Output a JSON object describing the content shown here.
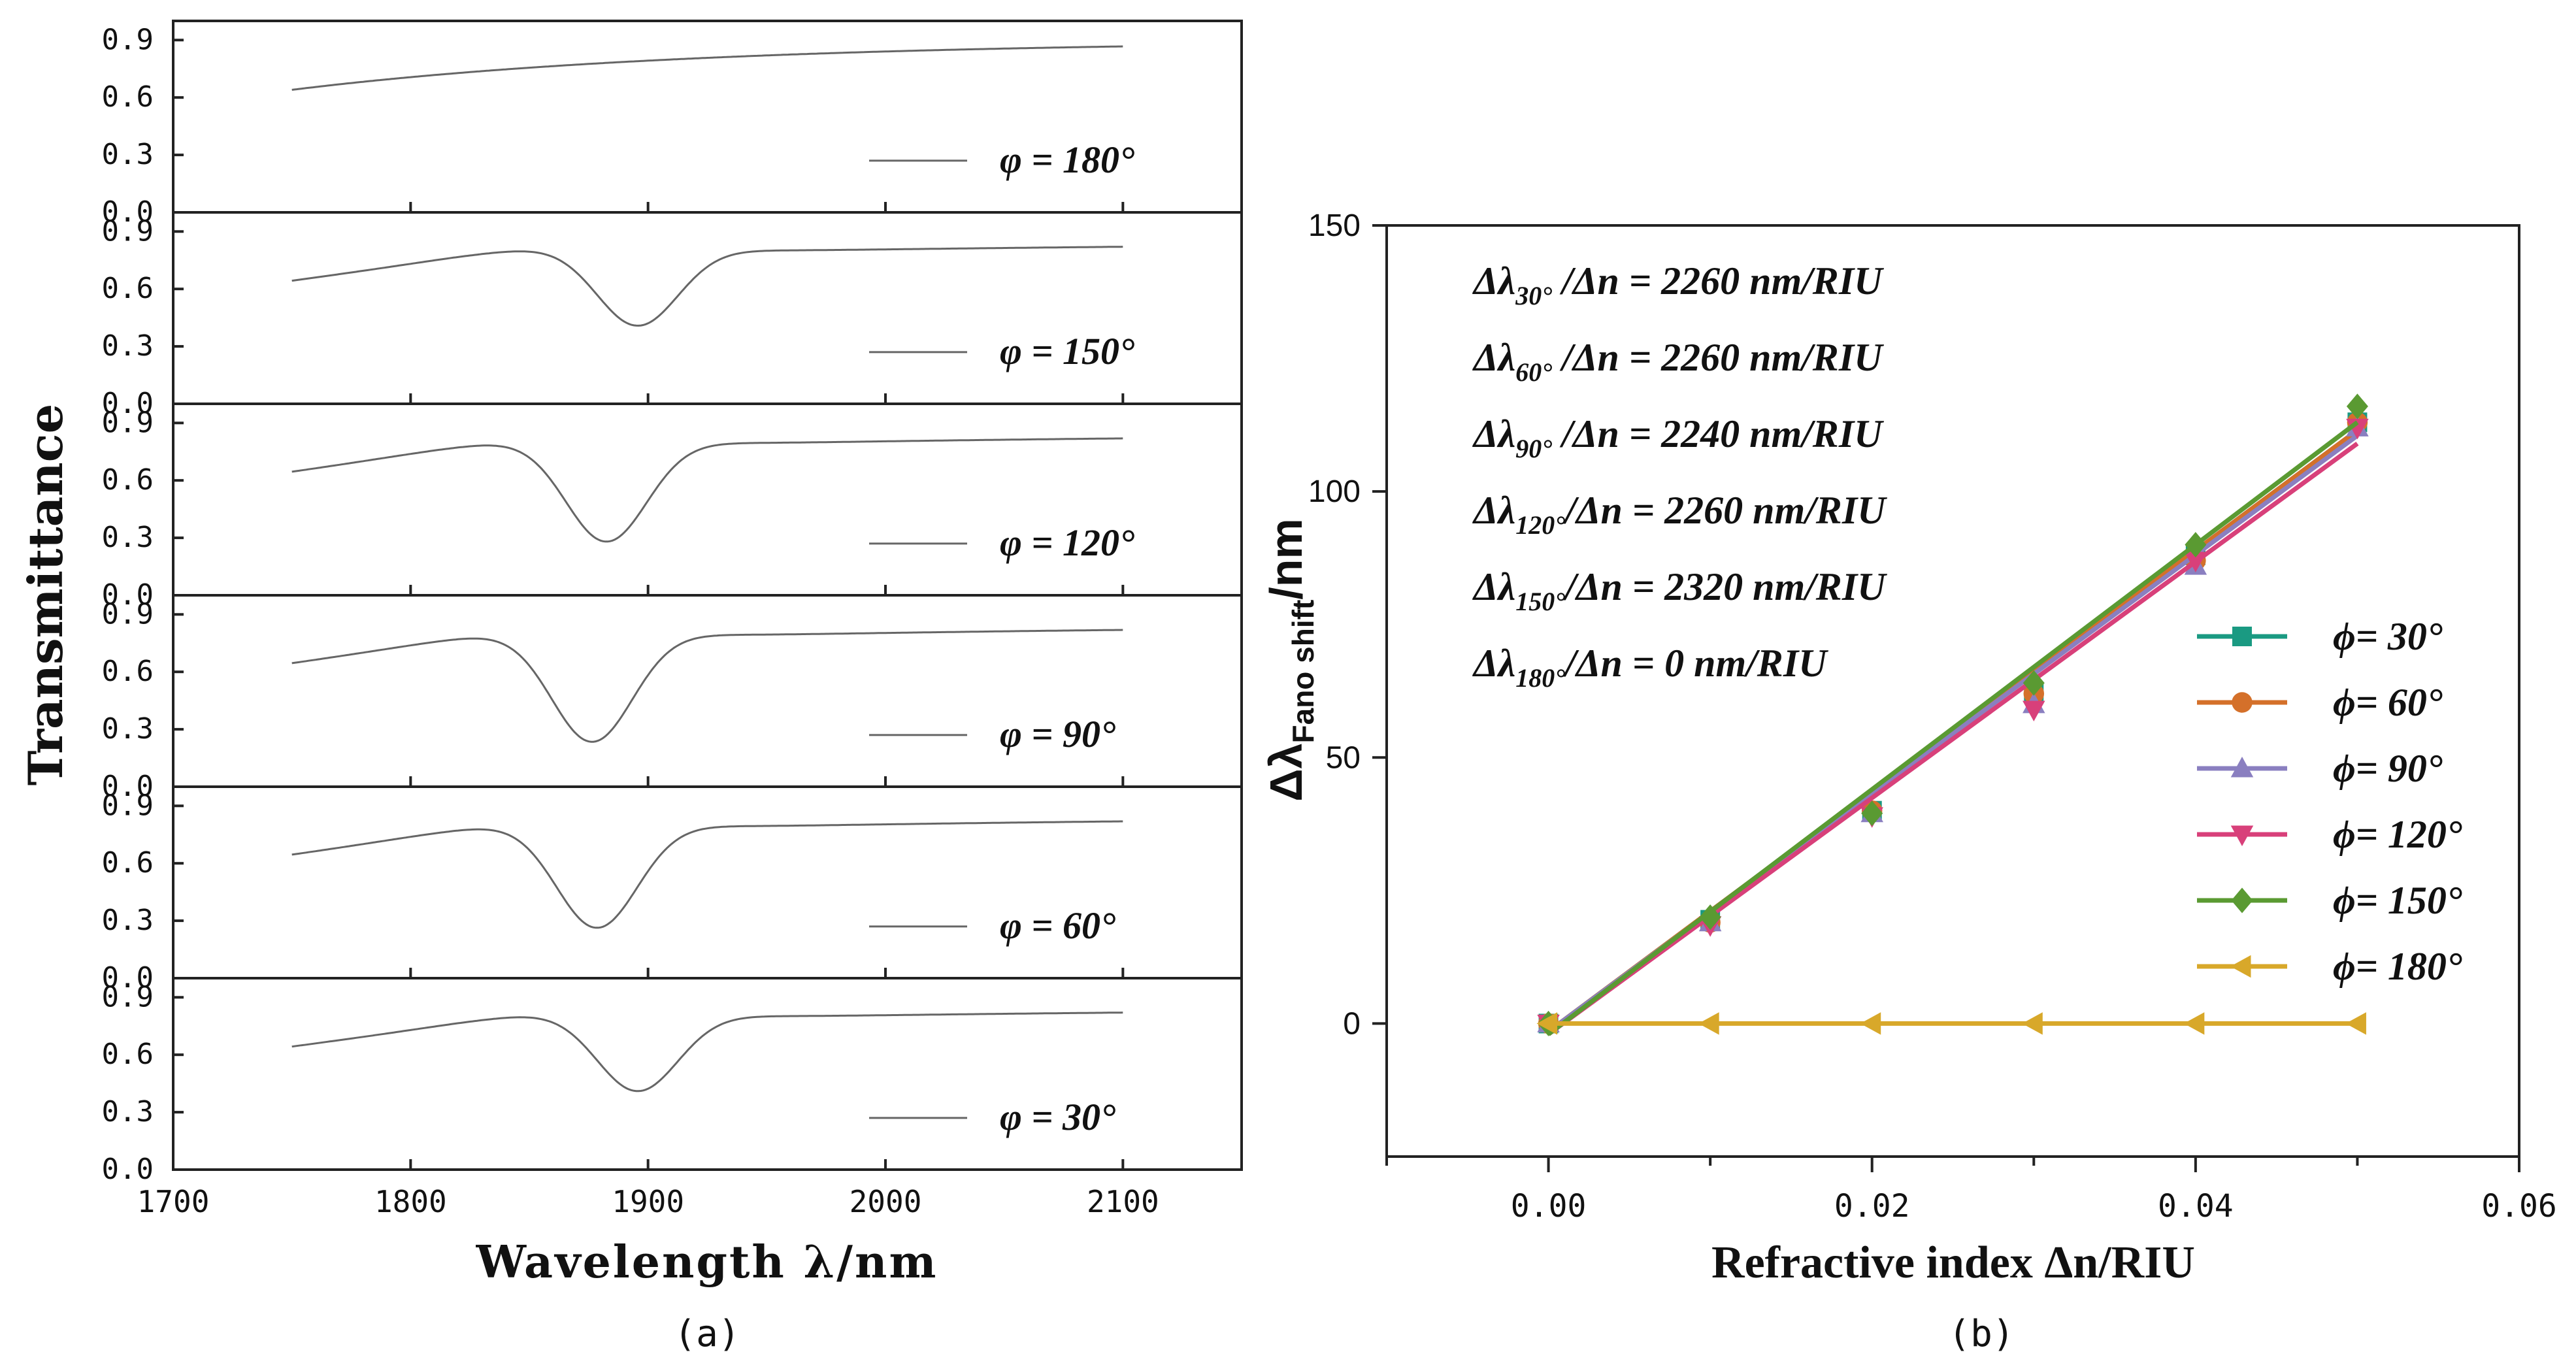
{
  "chart_data": [
    {
      "type": "line",
      "panel_label": "(a)",
      "xlabel": "Wavelength λ/nm",
      "ylabel": "Transmittance",
      "xlim": [
        1700,
        2150
      ],
      "x_ticks": [
        "1700",
        "1800",
        "1900",
        "2000",
        "2100"
      ],
      "ylim": [
        0,
        1.0
      ],
      "y_ticks": [
        "0.0",
        "0.3",
        "0.6",
        "0.9"
      ],
      "subplots": [
        {
          "label": "φ = 180°",
          "resonance": null
        },
        {
          "label": "φ = 150°",
          "resonance": {
            "peak": 1850,
            "dip": 1895,
            "min": 0.38
          }
        },
        {
          "label": "φ = 120°",
          "resonance": {
            "peak": 1840,
            "dip": 1882,
            "min": 0.25
          }
        },
        {
          "label": "φ = 90°",
          "resonance": {
            "peak": 1840,
            "dip": 1876,
            "min": 0.2
          }
        },
        {
          "label": "φ = 60°",
          "resonance": {
            "peak": 1840,
            "dip": 1878,
            "min": 0.23
          }
        },
        {
          "label": "φ = 30°",
          "resonance": {
            "peak": 1853,
            "dip": 1895,
            "min": 0.38
          }
        }
      ]
    },
    {
      "type": "line",
      "panel_label": "(b)",
      "xlabel": "Refractive index Δn/RIU",
      "ylabel": "Δλ",
      "ylabel_sub": "Fano shift",
      "ylabel_unit": "/nm",
      "xlim": [
        -0.01,
        0.06
      ],
      "x_ticks": [
        "0.00",
        "0.02",
        "0.04",
        "0.06"
      ],
      "ylim": [
        -25,
        150
      ],
      "y_ticks": [
        "0",
        "50",
        "100",
        "150"
      ],
      "annotations": [
        {
          "main": "Δλ",
          "sub": "30°",
          "rest": " /Δn = 2260 nm/RIU"
        },
        {
          "main": "Δλ",
          "sub": "60°",
          "rest": " /Δn = 2260 nm/RIU"
        },
        {
          "main": "Δλ",
          "sub": "90°",
          "rest": " /Δn = 2240 nm/RIU"
        },
        {
          "main": "Δλ",
          "sub": "120°",
          "rest": "/Δn = 2260 nm/RIU"
        },
        {
          "main": "Δλ",
          "sub": "150°",
          "rest": "/Δn = 2320 nm/RIU"
        },
        {
          "main": "Δλ",
          "sub": "180°",
          "rest": "/Δn =    0    nm/RIU"
        }
      ],
      "x": [
        0.0,
        0.01,
        0.02,
        0.03,
        0.04,
        0.05
      ],
      "series": [
        {
          "name": "ϕ=  30°",
          "marker": "square",
          "color": "#1a9a82",
          "values": [
            0,
            19.5,
            40,
            62,
            88,
            113
          ],
          "fit": [
            -1.5,
            111.5
          ]
        },
        {
          "name": "ϕ=  60°",
          "marker": "circle",
          "color": "#d4702a",
          "values": [
            0,
            19,
            40,
            62,
            87,
            113
          ],
          "fit": [
            -1.5,
            111.5
          ]
        },
        {
          "name": "ϕ=  90°",
          "marker": "triangle-up",
          "color": "#8a7fc0",
          "values": [
            0,
            19,
            39.5,
            60,
            86,
            112
          ],
          "fit": [
            -1.5,
            110.5
          ]
        },
        {
          "name": "ϕ= 120°",
          "marker": "triangle-down",
          "color": "#d8407a",
          "values": [
            0,
            18.5,
            39,
            59,
            87,
            112
          ],
          "fit": [
            -2,
            109
          ]
        },
        {
          "name": "ϕ= 150°",
          "marker": "diamond",
          "color": "#5a9a32",
          "values": [
            0,
            20,
            39.5,
            64,
            90,
            116
          ],
          "fit": [
            -2,
            113
          ]
        },
        {
          "name": "ϕ= 180°",
          "marker": "triangle-left",
          "color": "#d8a82a",
          "values": [
            0,
            0,
            0,
            0,
            0,
            0
          ],
          "fit": [
            0,
            0
          ]
        }
      ]
    }
  ]
}
